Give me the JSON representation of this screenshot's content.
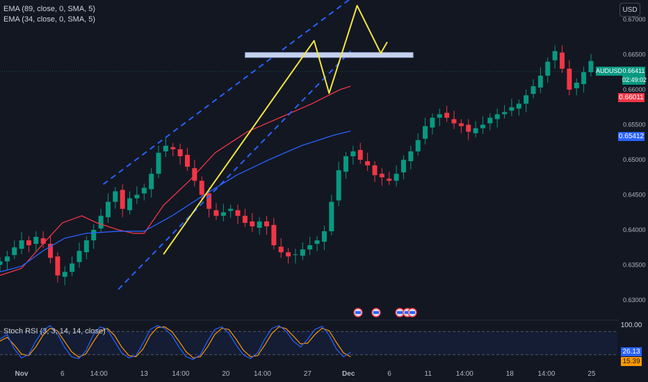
{
  "legend": {
    "ema89": "EMA (89, close, 0, SMA, 5)",
    "ema34": "EMA (34, close, 0, SMA, 5)"
  },
  "currency_label": "USD",
  "symbol_tag": {
    "label": "AUDUSD",
    "price": "0.66411",
    "countdown": "02:49:02",
    "color": "#089981"
  },
  "ema34_tag": {
    "value": "0.66011",
    "color": "#f23645"
  },
  "ema89_tag": {
    "value": "0.65412",
    "color": "#2962ff"
  },
  "stoch": {
    "label": "Stoch RSI (3, 3, 14, 14, close)",
    "top_tick": "100.00",
    "k_value": "26.13",
    "d_value": "15.39",
    "k_color": "#2962ff",
    "d_color": "#ff9800"
  },
  "chart_data": {
    "type": "candlestick",
    "symbol": "AUDUSD",
    "y_ticks": [
      0.67,
      0.665,
      0.66,
      0.655,
      0.65,
      0.645,
      0.64,
      0.635,
      0.63
    ],
    "y_tick_labels": [
      "0.67000",
      "0.66500",
      "0.66000",
      "0.65500",
      "0.65000",
      "0.64500",
      "0.64000",
      "0.63500",
      "0.63000"
    ],
    "ylim": [
      0.6277,
      0.6728
    ],
    "x_tick_labels": [
      "Nov",
      "6",
      "14:00",
      "13",
      "14:00",
      "20",
      "14:00",
      "27",
      "Dec",
      "6",
      "11",
      "14:00",
      "18",
      "14:00",
      "25"
    ],
    "x_tick_positions": [
      0,
      19,
      36,
      57,
      74,
      95,
      112,
      133,
      152,
      171,
      189,
      206,
      227,
      244,
      265
    ],
    "x_range": [
      -10,
      277
    ],
    "last_price": 0.66411,
    "candles_close": [
      0.6355,
      0.6362,
      0.6375,
      0.6385,
      0.6378,
      0.639,
      0.638,
      0.636,
      0.6335,
      0.634,
      0.6352,
      0.637,
      0.6385,
      0.64,
      0.642,
      0.644,
      0.6455,
      0.643,
      0.6445,
      0.645,
      0.646,
      0.648,
      0.651,
      0.652,
      0.6515,
      0.6505,
      0.649,
      0.647,
      0.645,
      0.643,
      0.642,
      0.6425,
      0.643,
      0.642,
      0.641,
      0.6405,
      0.6412,
      0.6405,
      0.6378,
      0.6368,
      0.6362,
      0.6365,
      0.6372,
      0.6378,
      0.6385,
      0.6398,
      0.644,
      0.6485,
      0.6505,
      0.6512,
      0.65,
      0.6492,
      0.6478,
      0.6475,
      0.647,
      0.648,
      0.65,
      0.6512,
      0.6528,
      0.6548,
      0.656,
      0.6565,
      0.656,
      0.6552,
      0.6548,
      0.654,
      0.6545,
      0.655,
      0.656,
      0.6565,
      0.6568,
      0.6575,
      0.658,
      0.6592,
      0.6605,
      0.662,
      0.664,
      0.6655,
      0.663,
      0.66,
      0.661,
      0.6625,
      0.6641
    ],
    "candle_x_step": 3.35,
    "ema34": [
      [
        -10,
        0.6335
      ],
      [
        0,
        0.6345
      ],
      [
        10,
        0.638
      ],
      [
        19,
        0.641
      ],
      [
        28,
        0.642
      ],
      [
        35,
        0.641
      ],
      [
        45,
        0.64
      ],
      [
        52,
        0.6395
      ],
      [
        57,
        0.6395
      ],
      [
        66,
        0.6435
      ],
      [
        78,
        0.647
      ],
      [
        90,
        0.651
      ],
      [
        105,
        0.654
      ],
      [
        120,
        0.656
      ],
      [
        135,
        0.658
      ],
      [
        148,
        0.66
      ],
      [
        153,
        0.6605
      ]
    ],
    "ema89": [
      [
        -10,
        0.634
      ],
      [
        0,
        0.6348
      ],
      [
        10,
        0.637
      ],
      [
        20,
        0.6388
      ],
      [
        30,
        0.6395
      ],
      [
        45,
        0.6398
      ],
      [
        57,
        0.6398
      ],
      [
        70,
        0.642
      ],
      [
        85,
        0.645
      ],
      [
        100,
        0.6478
      ],
      [
        115,
        0.65
      ],
      [
        130,
        0.652
      ],
      [
        145,
        0.6535
      ],
      [
        153,
        0.6541
      ]
    ],
    "channel_upper": [
      [
        38,
        0.6465
      ],
      [
        153,
        0.673
      ]
    ],
    "channel_lower": [
      [
        45,
        0.6315
      ],
      [
        153,
        0.6655
      ]
    ],
    "resistance_zone": [
      [
        104,
        0.665
      ],
      [
        182,
        0.665
      ]
    ],
    "projected_path": [
      [
        66,
        0.6365
      ],
      [
        136,
        0.667
      ],
      [
        143,
        0.6595
      ],
      [
        156,
        0.672
      ],
      [
        167,
        0.6652
      ],
      [
        170,
        0.6668
      ]
    ],
    "stoch_k": [
      60,
      72,
      35,
      12,
      20,
      55,
      82,
      95,
      75,
      40,
      15,
      10,
      30,
      70,
      92,
      85,
      55,
      25,
      12,
      18,
      50,
      85,
      95,
      88,
      70,
      40,
      15,
      8,
      20,
      55,
      85,
      92,
      75,
      45,
      20,
      10,
      25,
      60,
      88,
      95,
      80,
      55,
      40,
      60,
      85,
      93,
      70,
      35,
      15,
      26
    ],
    "stoch_d": [
      55,
      65,
      45,
      22,
      18,
      40,
      70,
      88,
      82,
      55,
      28,
      14,
      22,
      52,
      80,
      88,
      70,
      40,
      18,
      15,
      35,
      70,
      90,
      92,
      80,
      55,
      28,
      12,
      15,
      40,
      72,
      88,
      85,
      60,
      32,
      15,
      18,
      45,
      75,
      92,
      87,
      68,
      48,
      50,
      72,
      88,
      82,
      52,
      25,
      15
    ]
  }
}
